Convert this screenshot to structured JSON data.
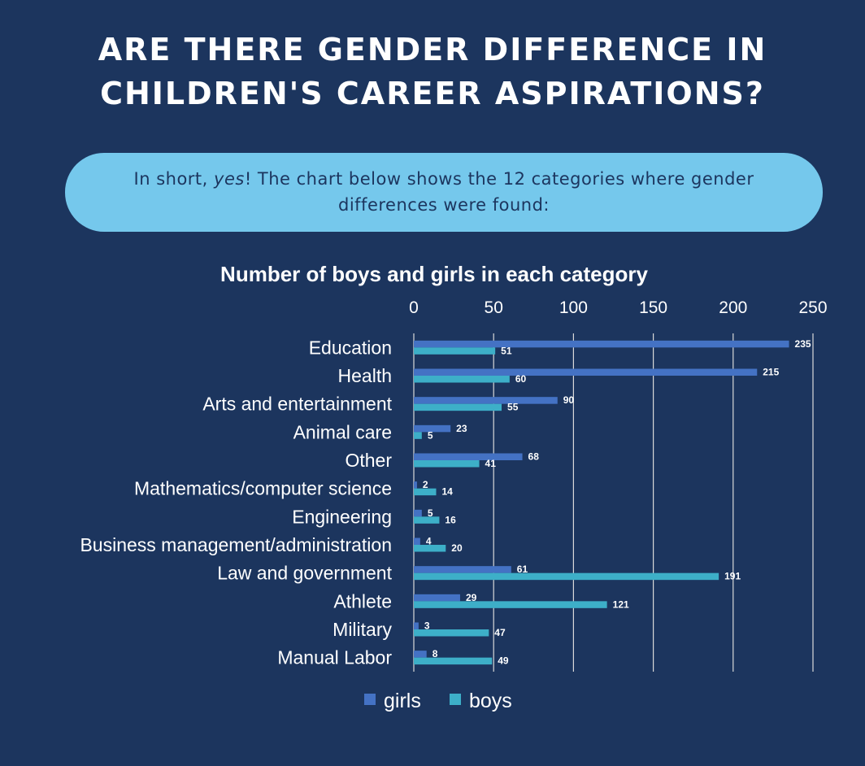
{
  "header": {
    "title_line1": "ARE THERE GENDER DIFFERENCE IN",
    "title_line2": "CHILDREN'S CAREER ASPIRATIONS?"
  },
  "callout": {
    "text_before": "In short, ",
    "text_emphasis": "yes",
    "text_after": "! The chart below shows the 12 categories where gender differences were found:"
  },
  "colors": {
    "background": "#1c355e",
    "callout": "#75c8ec",
    "girls": "#4472c4",
    "boys": "#3dafc8",
    "grid": "#d9d9d9"
  },
  "chart_data": {
    "type": "bar",
    "orientation": "horizontal",
    "title": "Number of boys and girls in each category",
    "categories": [
      "Education",
      "Health",
      "Arts and entertainment",
      "Animal care",
      "Other",
      "Mathematics/computer science",
      "Engineering",
      "Business management/administration",
      "Law and government",
      "Athlete",
      "Military",
      "Manual Labor"
    ],
    "series": [
      {
        "name": "girls",
        "values": [
          235,
          215,
          90,
          23,
          68,
          2,
          5,
          4,
          61,
          29,
          3,
          8
        ]
      },
      {
        "name": "boys",
        "values": [
          51,
          60,
          55,
          5,
          41,
          14,
          16,
          20,
          191,
          121,
          47,
          49
        ]
      }
    ],
    "xlim": [
      0,
      250
    ],
    "xticks": [
      0,
      50,
      100,
      150,
      200,
      250
    ],
    "xaxis_position": "top",
    "grid": true,
    "legend": "bottom",
    "xlabel": "",
    "ylabel": ""
  }
}
